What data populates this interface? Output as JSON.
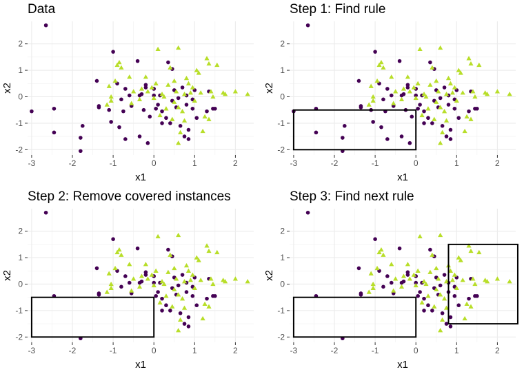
{
  "chart_data": [
    {
      "type": "scatter",
      "title": "Data",
      "xlabel": "x1",
      "ylabel": "x2",
      "xlim": [
        -3.1,
        2.45
      ],
      "ylim": [
        -2.2,
        2.85
      ],
      "xticks": [
        -3,
        -2,
        -1,
        0,
        1,
        2
      ],
      "yticks": [
        -2,
        -1,
        0,
        1,
        2
      ],
      "grid": true,
      "legend": "none",
      "series_colors": {
        "circle": "#440154",
        "triangle": "#b8de29"
      },
      "removed_points": false,
      "rules": []
    },
    {
      "type": "scatter",
      "title": "Step 1: Find rule",
      "xlabel": "x1",
      "ylabel": "x2",
      "xlim": [
        -3.1,
        2.45
      ],
      "ylim": [
        -2.2,
        2.85
      ],
      "xticks": [
        -3,
        -2,
        -1,
        0,
        1,
        2
      ],
      "yticks": [
        -2,
        -1,
        0,
        1,
        2
      ],
      "grid": true,
      "legend": "none",
      "removed_points": false,
      "rules": [
        {
          "x1": [
            -3,
            0
          ],
          "x2": [
            -2,
            -0.5
          ]
        }
      ]
    },
    {
      "type": "scatter",
      "title": "Step 2: Remove covered instances",
      "xlabel": "x1",
      "ylabel": "x2",
      "xlim": [
        -3.1,
        2.45
      ],
      "ylim": [
        -2.2,
        2.85
      ],
      "xticks": [
        -3,
        -2,
        -1,
        0,
        1,
        2
      ],
      "yticks": [
        -2,
        -1,
        0,
        1,
        2
      ],
      "grid": true,
      "legend": "none",
      "removed_points": true,
      "rules": [
        {
          "x1": [
            -3,
            0
          ],
          "x2": [
            -2,
            -0.5
          ]
        }
      ]
    },
    {
      "type": "scatter",
      "title": "Step 3: Find next rule",
      "xlabel": "x1",
      "ylabel": "x2",
      "xlim": [
        -3.1,
        2.45
      ],
      "ylim": [
        -2.2,
        2.85
      ],
      "xticks": [
        -3,
        -2,
        -1,
        0,
        1,
        2
      ],
      "yticks": [
        -2,
        -1,
        0,
        1,
        2
      ],
      "grid": true,
      "legend": "none",
      "removed_points": true,
      "rules": [
        {
          "x1": [
            -3,
            0
          ],
          "x2": [
            -2,
            -0.5
          ]
        },
        {
          "x1": [
            0.8,
            2.5
          ],
          "x2": [
            -1.5,
            1.5
          ]
        }
      ]
    }
  ],
  "points": {
    "circle": [
      [
        -2.65,
        2.7
      ],
      [
        -3.0,
        -0.55
      ],
      [
        -2.45,
        -0.45
      ],
      [
        -2.45,
        -1.35
      ],
      [
        -1.75,
        -1.1
      ],
      [
        -1.8,
        -1.55
      ],
      [
        -1.8,
        -2.05
      ],
      [
        -1.35,
        -0.4
      ],
      [
        -1.05,
        -0.95
      ],
      [
        -0.85,
        -1.15
      ],
      [
        -0.7,
        -1.6
      ],
      [
        -1.4,
        0.6
      ],
      [
        -1.35,
        -0.35
      ],
      [
        -1.0,
        1.7
      ],
      [
        -0.9,
        0.5
      ],
      [
        -0.7,
        0.3
      ],
      [
        -0.6,
        0.05
      ],
      [
        -0.55,
        -0.35
      ],
      [
        -0.35,
        0.05
      ],
      [
        -0.25,
        -0.5
      ],
      [
        -0.1,
        -0.75
      ],
      [
        0.0,
        0.05
      ],
      [
        -0.2,
        0.35
      ],
      [
        -0.2,
        0.45
      ],
      [
        0.0,
        0.3
      ],
      [
        0.1,
        -0.3
      ],
      [
        0.2,
        -0.55
      ],
      [
        0.3,
        -0.8
      ],
      [
        0.4,
        -1.0
      ],
      [
        0.35,
        1.3
      ],
      [
        0.45,
        1.05
      ],
      [
        0.5,
        0.25
      ],
      [
        0.55,
        -0.4
      ],
      [
        0.65,
        -1.1
      ],
      [
        0.75,
        -1.5
      ],
      [
        0.85,
        -1.6
      ],
      [
        0.7,
        0.35
      ],
      [
        0.8,
        0.05
      ],
      [
        0.8,
        -0.3
      ],
      [
        0.95,
        -0.45
      ],
      [
        1.05,
        -0.8
      ],
      [
        1.3,
        -0.55
      ],
      [
        1.35,
        0.2
      ],
      [
        1.45,
        -0.45
      ],
      [
        1.5,
        -0.45
      ],
      [
        -0.4,
        1.35
      ],
      [
        -0.3,
        0.1
      ],
      [
        0.2,
        -1.0
      ],
      [
        0.85,
        -1.25
      ],
      [
        -0.75,
        -0.55
      ],
      [
        -0.8,
        -0.1
      ],
      [
        0.15,
        0.05
      ],
      [
        0.6,
        -0.05
      ],
      [
        1.0,
        0.25
      ],
      [
        -0.35,
        -1.5
      ],
      [
        -0.15,
        -1.75
      ],
      [
        0.45,
        -0.15
      ],
      [
        -1.1,
        -0.5
      ],
      [
        0.05,
        -0.45
      ],
      [
        0.95,
        -0.1
      ]
    ],
    "triangle": [
      [
        -1.1,
        0.4
      ],
      [
        -1.05,
        0.0
      ],
      [
        -1.05,
        -0.15
      ],
      [
        -0.95,
        0.6
      ],
      [
        -0.9,
        1.2
      ],
      [
        -0.8,
        1.1
      ],
      [
        -0.85,
        1.3
      ],
      [
        -0.6,
        0.75
      ],
      [
        -0.5,
        0.2
      ],
      [
        -0.35,
        -0.1
      ],
      [
        -0.3,
        0.3
      ],
      [
        -0.2,
        0.75
      ],
      [
        -0.15,
        0.2
      ],
      [
        -0.05,
        0.35
      ],
      [
        0.05,
        0.5
      ],
      [
        0.1,
        1.8
      ],
      [
        0.2,
        0.1
      ],
      [
        0.25,
        0.0
      ],
      [
        0.3,
        -0.45
      ],
      [
        0.35,
        0.45
      ],
      [
        0.4,
        1.1
      ],
      [
        0.5,
        0.6
      ],
      [
        0.55,
        0.2
      ],
      [
        0.6,
        1.85
      ],
      [
        0.6,
        -0.4
      ],
      [
        0.65,
        -1.35
      ],
      [
        0.7,
        -0.55
      ],
      [
        0.75,
        -0.9
      ],
      [
        0.8,
        0.7
      ],
      [
        0.85,
        0.5
      ],
      [
        0.9,
        0.15
      ],
      [
        0.95,
        0.35
      ],
      [
        1.0,
        -0.15
      ],
      [
        1.05,
        1.0
      ],
      [
        1.1,
        0.9
      ],
      [
        1.15,
        0.15
      ],
      [
        1.25,
        -0.75
      ],
      [
        1.3,
        1.45
      ],
      [
        1.35,
        1.25
      ],
      [
        1.35,
        -0.85
      ],
      [
        1.4,
        0.2
      ],
      [
        1.55,
        1.2
      ],
      [
        1.75,
        0.1
      ],
      [
        2.0,
        0.2
      ],
      [
        2.3,
        0.1
      ],
      [
        0.6,
        -1.75
      ],
      [
        1.2,
        -1.3
      ],
      [
        0.45,
        -0.85
      ],
      [
        -1.15,
        -0.3
      ],
      [
        0.75,
        0.1
      ],
      [
        1.45,
        0.0
      ],
      [
        0.0,
        -0.05
      ],
      [
        -0.55,
        -0.25
      ],
      [
        0.15,
        -0.7
      ],
      [
        1.7,
        0.15
      ],
      [
        0.5,
        -0.2
      ]
    ]
  }
}
